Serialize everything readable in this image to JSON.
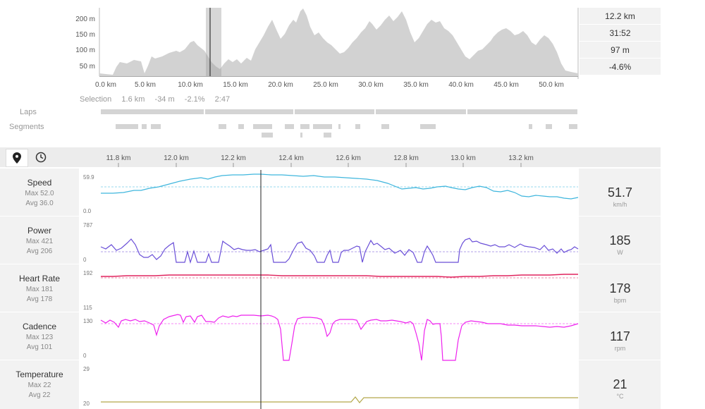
{
  "elevation": {
    "y_ticks": [
      "200 m",
      "150 m",
      "100 m",
      "50 m"
    ],
    "x_ticks": [
      "0.0 km",
      "5.0 km",
      "10.0 km",
      "15.0 km",
      "20.0 km",
      "25.0 km",
      "30.0 km",
      "35.0 km",
      "40.0 km",
      "45.0 km",
      "50.0 km"
    ],
    "stats": [
      "12.2 km",
      "31:52",
      "97 m",
      "-4.6%"
    ],
    "selection": {
      "label": "Selection",
      "distance": "1.6 km",
      "elevation": "-34 m",
      "grade": "-2.1%",
      "time": "2:47"
    }
  },
  "lanes": {
    "laps_label": "Laps",
    "segments_label": "Segments"
  },
  "toolbar": {
    "map_icon": "map-pin-icon",
    "clock_icon": "clock-icon"
  },
  "detail_axis": [
    "11.8 km",
    "12.0 km",
    "12.2 km",
    "12.4 km",
    "12.6 km",
    "12.8 km",
    "13.0 km",
    "13.2 km"
  ],
  "metrics": [
    {
      "name": "Speed",
      "max": "Max 52.0",
      "avg": "Avg 36.0",
      "value": "51.7",
      "unit": "km/h",
      "ymax": "59.9",
      "ymin": "0.0",
      "color": "#3fb6dd"
    },
    {
      "name": "Power",
      "max": "Max 421",
      "avg": "Avg 206",
      "value": "185",
      "unit": "W",
      "ymax": "787",
      "ymin": "0",
      "color": "#6a4fd8"
    },
    {
      "name": "Heart Rate",
      "max": "Max 181",
      "avg": "Avg 178",
      "value": "178",
      "unit": "bpm",
      "ymax": "192",
      "ymin": "115",
      "color": "#e0245e"
    },
    {
      "name": "Cadence",
      "max": "Max 123",
      "avg": "Avg 101",
      "value": "117",
      "unit": "rpm",
      "ymax": "130",
      "ymin": "0",
      "color": "#ee22ee"
    },
    {
      "name": "Temperature",
      "max": "Max 22",
      "avg": "Avg 22",
      "value": "21",
      "unit": "°C",
      "ymax": "29",
      "ymin": "20",
      "color": "#b3a84a"
    }
  ]
}
